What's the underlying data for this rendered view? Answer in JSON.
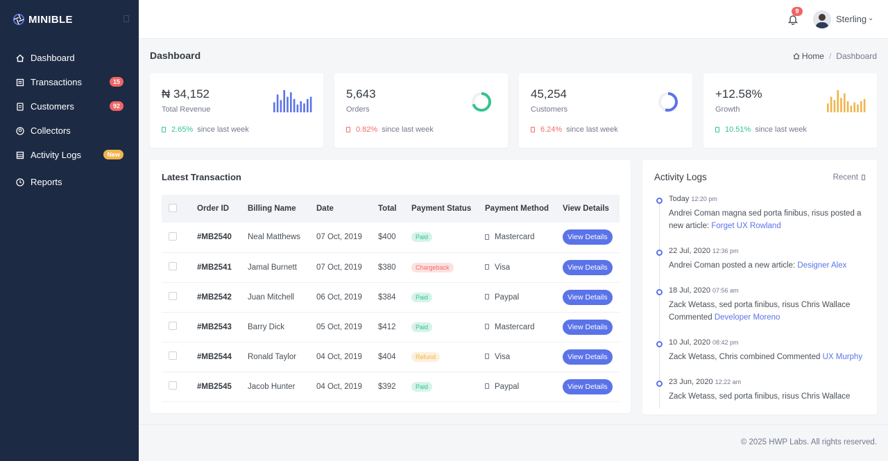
{
  "app": {
    "brand": "MINIBLE"
  },
  "sidebar": {
    "items": [
      {
        "label": "Dashboard",
        "icon": "home-icon"
      },
      {
        "label": "Transactions",
        "icon": "receipt-icon",
        "badge": "15"
      },
      {
        "label": "Customers",
        "icon": "document-icon",
        "badge": "92"
      },
      {
        "label": "Collectors",
        "icon": "user-circle-icon"
      },
      {
        "label": "Activity Logs",
        "icon": "list-icon",
        "badge": "New"
      },
      {
        "label": "Reports",
        "icon": "clock-icon"
      }
    ]
  },
  "topbar": {
    "notification_count": "9",
    "user_name": "Sterling"
  },
  "header": {
    "title": "Dashboard",
    "breadcrumb": {
      "home": "Home",
      "current": "Dashboard"
    }
  },
  "stats": [
    {
      "value": "₦ 34,152",
      "label": "Total Revenue",
      "change": "2.65%",
      "trend": "up",
      "since": "since last week",
      "graphic": "bar-chart",
      "color": "#5b73e8",
      "bars": [
        45,
        80,
        55,
        100,
        70,
        90,
        60,
        35,
        50,
        40,
        60,
        70
      ]
    },
    {
      "value": "5,643",
      "label": "Orders",
      "change": "0.82%",
      "trend": "down",
      "since": "since last week",
      "graphic": "donut",
      "color": "#34c38f",
      "fraction": 0.7
    },
    {
      "value": "45,254",
      "label": "Customers",
      "change": "6.24%",
      "trend": "down",
      "since": "since last week",
      "graphic": "donut",
      "color": "#5b73e8",
      "fraction": 0.55
    },
    {
      "value": "+12.58%",
      "label": "Growth",
      "change": "10.51%",
      "trend": "up",
      "since": "since last week",
      "graphic": "bar-chart",
      "color": "#f1b44c",
      "bars": [
        40,
        70,
        55,
        100,
        65,
        85,
        50,
        30,
        45,
        35,
        50,
        60
      ]
    }
  ],
  "transactions": {
    "title": "Latest Transaction",
    "columns": [
      "Order ID",
      "Billing Name",
      "Date",
      "Total",
      "Payment Status",
      "Payment Method",
      "View Details"
    ],
    "button_label": "View Details",
    "rows": [
      {
        "id": "#MB2540",
        "name": "Neal Matthews",
        "date": "07 Oct, 2019",
        "total": "$400",
        "status": "Paid",
        "method": "Mastercard"
      },
      {
        "id": "#MB2541",
        "name": "Jamal Burnett",
        "date": "07 Oct, 2019",
        "total": "$380",
        "status": "Chargeback",
        "method": "Visa"
      },
      {
        "id": "#MB2542",
        "name": "Juan Mitchell",
        "date": "06 Oct, 2019",
        "total": "$384",
        "status": "Paid",
        "method": "Paypal"
      },
      {
        "id": "#MB2543",
        "name": "Barry Dick",
        "date": "05 Oct, 2019",
        "total": "$412",
        "status": "Paid",
        "method": "Mastercard"
      },
      {
        "id": "#MB2544",
        "name": "Ronald Taylor",
        "date": "04 Oct, 2019",
        "total": "$404",
        "status": "Refund",
        "method": "Visa"
      },
      {
        "id": "#MB2545",
        "name": "Jacob Hunter",
        "date": "04 Oct, 2019",
        "total": "$392",
        "status": "Paid",
        "method": "Paypal"
      }
    ]
  },
  "activity": {
    "title": "Activity Logs",
    "filter": "Recent",
    "items": [
      {
        "date": "Today",
        "time": "12:20 pm",
        "text": "Andrei Coman magna sed porta finibus, risus posted a new article: ",
        "link": "Forget UX Rowland"
      },
      {
        "date": "22 Jul, 2020",
        "time": "12:36 pm",
        "text": "Andrei Coman posted a new article: ",
        "link": "Designer Alex"
      },
      {
        "date": "18 Jul, 2020",
        "time": "07:56 am",
        "text": "Zack Wetass, sed porta finibus, risus Chris Wallace Commented ",
        "link": "Developer Moreno"
      },
      {
        "date": "10 Jul, 2020",
        "time": "08:42 pm",
        "text": "Zack Wetass, Chris combined Commented ",
        "link": "UX Murphy"
      },
      {
        "date": "23 Jun, 2020",
        "time": "12:22 am",
        "text": "Zack Wetass, sed porta finibus, risus Chris Wallace",
        "link": ""
      }
    ]
  },
  "footer": {
    "text": "© 2025 HWP Labs. All rights reserved."
  }
}
